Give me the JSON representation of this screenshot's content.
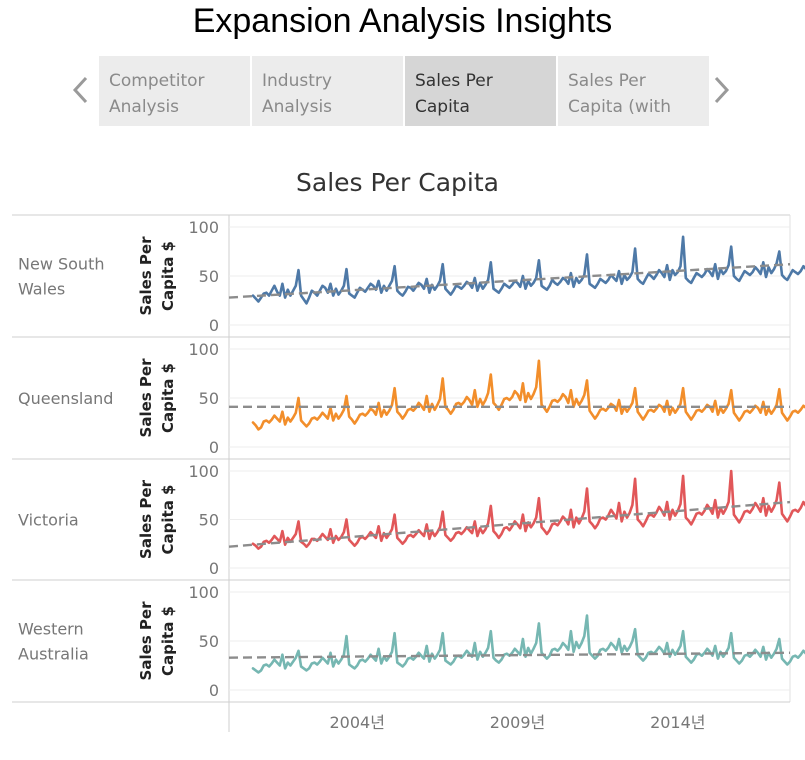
{
  "story": {
    "title": "Expansion Analysis Insights",
    "tabs": [
      {
        "label": "Competitor Analysis",
        "active": false
      },
      {
        "label": "Industry Analysis",
        "active": false
      },
      {
        "label": "Sales Per Capita",
        "active": true
      },
      {
        "label": "Sales Per Capita (with",
        "active": false
      }
    ]
  },
  "chart_data": {
    "type": "line",
    "title": "Sales Per Capita",
    "ylabel": "Sales Per Capita $",
    "ylim": [
      0,
      100
    ],
    "y_ticks": [
      0,
      50,
      100
    ],
    "xlim": [
      2000.0,
      2017.5
    ],
    "x_ticks": [
      {
        "value": 2004,
        "label": "2004년"
      },
      {
        "value": 2009,
        "label": "2009년"
      },
      {
        "value": 2014,
        "label": "2014년"
      }
    ],
    "x_start": 2000.75,
    "x_step_months": 1,
    "grid": true,
    "trend_line": "dashed gray linear trend per panel",
    "series": [
      {
        "name": "New South Wales",
        "color": "#4e79a7",
        "trend": {
          "x": [
            2000.0,
            2017.5
          ],
          "y": [
            28,
            62
          ]
        },
        "values": [
          30,
          27,
          24,
          28,
          32,
          33,
          30,
          35,
          40,
          34,
          30,
          42,
          28,
          36,
          30,
          35,
          40,
          56,
          30,
          26,
          22,
          28,
          35,
          33,
          30,
          35,
          40,
          38,
          33,
          42,
          30,
          37,
          31,
          35,
          40,
          57,
          32,
          30,
          28,
          33,
          38,
          36,
          34,
          38,
          42,
          40,
          36,
          45,
          33,
          40,
          35,
          40,
          45,
          60,
          35,
          32,
          30,
          34,
          39,
          38,
          35,
          39,
          43,
          41,
          37,
          47,
          33,
          41,
          36,
          40,
          45,
          62,
          37,
          34,
          31,
          35,
          40,
          39,
          37,
          40,
          44,
          42,
          38,
          48,
          35,
          43,
          37,
          41,
          46,
          64,
          37,
          35,
          33,
          37,
          42,
          40,
          38,
          41,
          45,
          43,
          39,
          50,
          37,
          45,
          40,
          43,
          48,
          66,
          40,
          38,
          36,
          40,
          46,
          43,
          41,
          44,
          48,
          46,
          42,
          53,
          39,
          48,
          43,
          46,
          51,
          72,
          42,
          40,
          38,
          42,
          47,
          45,
          43,
          46,
          51,
          48,
          45,
          55,
          42,
          51,
          46,
          49,
          54,
          78,
          47,
          44,
          42,
          47,
          52,
          50,
          47,
          51,
          56,
          53,
          49,
          61,
          46,
          56,
          51,
          54,
          60,
          90,
          48,
          45,
          43,
          48,
          53,
          51,
          49,
          52,
          57,
          54,
          50,
          62,
          47,
          57,
          52,
          55,
          61,
          80,
          50,
          47,
          45,
          50,
          55,
          53,
          51,
          54,
          59,
          56,
          52,
          64,
          49,
          59,
          53,
          57,
          63,
          75,
          51,
          48,
          46,
          51,
          56,
          54,
          52,
          55,
          60,
          57,
          53,
          65,
          50,
          60,
          54,
          58,
          64,
          82,
          55,
          51,
          49,
          54,
          59,
          57,
          55,
          58,
          63,
          60,
          56,
          68,
          53,
          64,
          58,
          61,
          67,
          92,
          56,
          52,
          50,
          55,
          60,
          58,
          56,
          60,
          65,
          62,
          57,
          54
        ]
      },
      {
        "name": "Queensland",
        "color": "#f28e2b",
        "trend": {
          "x": [
            2000.0,
            2017.5
          ],
          "y": [
            41,
            41
          ]
        },
        "values": [
          25,
          22,
          18,
          20,
          26,
          27,
          25,
          28,
          32,
          29,
          26,
          36,
          23,
          30,
          26,
          30,
          35,
          50,
          27,
          24,
          21,
          24,
          29,
          30,
          28,
          31,
          35,
          32,
          29,
          40,
          27,
          34,
          29,
          33,
          38,
          52,
          31,
          28,
          24,
          28,
          33,
          34,
          32,
          35,
          39,
          37,
          33,
          45,
          31,
          38,
          33,
          37,
          43,
          60,
          36,
          33,
          29,
          33,
          38,
          39,
          37,
          40,
          45,
          42,
          38,
          52,
          36,
          44,
          38,
          43,
          49,
          70,
          41,
          38,
          34,
          38,
          44,
          45,
          43,
          46,
          51,
          48,
          43,
          58,
          41,
          49,
          43,
          48,
          55,
          74,
          45,
          42,
          38,
          43,
          49,
          50,
          48,
          51,
          57,
          54,
          48,
          65,
          46,
          55,
          49,
          54,
          61,
          88,
          43,
          40,
          36,
          41,
          47,
          48,
          46,
          49,
          54,
          51,
          45,
          58,
          41,
          49,
          43,
          47,
          53,
          68,
          37,
          33,
          29,
          33,
          38,
          39,
          37,
          40,
          44,
          42,
          37,
          48,
          34,
          41,
          36,
          40,
          45,
          60,
          36,
          32,
          28,
          32,
          37,
          38,
          36,
          39,
          43,
          41,
          36,
          47,
          33,
          40,
          35,
          39,
          44,
          60,
          36,
          32,
          28,
          32,
          37,
          38,
          36,
          39,
          43,
          41,
          36,
          47,
          33,
          40,
          35,
          39,
          44,
          58,
          35,
          31,
          27,
          31,
          36,
          37,
          35,
          38,
          42,
          40,
          35,
          46,
          33,
          39,
          34,
          38,
          43,
          59,
          35,
          31,
          27,
          31,
          36,
          37,
          35,
          38,
          42,
          40,
          35,
          46,
          33,
          39,
          34,
          38,
          43,
          63,
          36,
          32,
          28,
          32,
          37,
          38,
          36,
          39,
          43,
          41,
          36,
          47,
          33,
          40,
          35,
          39,
          45,
          40
        ]
      },
      {
        "name": "Victoria",
        "color": "#e15759",
        "trend": {
          "x": [
            2000.0,
            2017.5
          ],
          "y": [
            22,
            68
          ]
        },
        "values": [
          25,
          23,
          20,
          22,
          27,
          28,
          26,
          29,
          33,
          30,
          27,
          38,
          24,
          31,
          27,
          31,
          35,
          48,
          27,
          25,
          22,
          25,
          30,
          30,
          28,
          31,
          35,
          32,
          29,
          40,
          26,
          33,
          29,
          32,
          37,
          50,
          29,
          26,
          23,
          26,
          31,
          32,
          30,
          33,
          37,
          34,
          31,
          43,
          28,
          36,
          31,
          35,
          40,
          55,
          31,
          28,
          25,
          28,
          33,
          34,
          32,
          35,
          39,
          36,
          33,
          45,
          30,
          38,
          33,
          37,
          42,
          58,
          34,
          31,
          28,
          31,
          36,
          37,
          35,
          38,
          42,
          39,
          36,
          48,
          33,
          41,
          36,
          40,
          46,
          64,
          38,
          35,
          31,
          35,
          41,
          42,
          39,
          43,
          48,
          45,
          41,
          55,
          38,
          47,
          42,
          46,
          52,
          72,
          42,
          39,
          35,
          39,
          45,
          46,
          44,
          48,
          53,
          50,
          45,
          60,
          42,
          52,
          46,
          51,
          58,
          82,
          48,
          45,
          41,
          45,
          51,
          52,
          50,
          54,
          60,
          56,
          51,
          67,
          48,
          58,
          52,
          57,
          65,
          92,
          50,
          47,
          43,
          48,
          54,
          55,
          53,
          57,
          63,
          59,
          54,
          68,
          50,
          60,
          54,
          59,
          66,
          95,
          52,
          49,
          45,
          50,
          56,
          57,
          55,
          59,
          65,
          61,
          56,
          70,
          52,
          62,
          56,
          61,
          68,
          100,
          55,
          51,
          47,
          52,
          58,
          59,
          57,
          61,
          67,
          63,
          58,
          72,
          54,
          64,
          58,
          63,
          70,
          88,
          56,
          52,
          48,
          53,
          59,
          60,
          58,
          62,
          68,
          64,
          59,
          73,
          55,
          65,
          59,
          64,
          72,
          90,
          57,
          53,
          49,
          54,
          60,
          61,
          59,
          63,
          69,
          65,
          60,
          55
        ]
      },
      {
        "name": "Western Australia",
        "color": "#76b7b2",
        "trend": {
          "x": [
            2000.0,
            2017.5
          ],
          "y": [
            33,
            38
          ]
        },
        "values": [
          22,
          20,
          18,
          20,
          25,
          26,
          24,
          27,
          31,
          28,
          25,
          36,
          22,
          28,
          25,
          29,
          33,
          40,
          24,
          22,
          20,
          22,
          27,
          28,
          26,
          29,
          33,
          30,
          27,
          38,
          24,
          31,
          27,
          31,
          36,
          55,
          26,
          24,
          22,
          25,
          30,
          31,
          29,
          32,
          36,
          33,
          30,
          42,
          27,
          34,
          30,
          34,
          39,
          58,
          28,
          26,
          24,
          27,
          32,
          33,
          31,
          34,
          38,
          35,
          32,
          45,
          29,
          37,
          32,
          36,
          41,
          58,
          30,
          28,
          26,
          29,
          34,
          35,
          33,
          36,
          40,
          37,
          34,
          48,
          31,
          39,
          34,
          38,
          43,
          60,
          33,
          30,
          28,
          31,
          36,
          37,
          35,
          38,
          42,
          39,
          36,
          52,
          34,
          43,
          37,
          42,
          48,
          68,
          38,
          35,
          32,
          35,
          41,
          42,
          40,
          43,
          48,
          45,
          41,
          60,
          39,
          49,
          43,
          48,
          55,
          76,
          38,
          35,
          32,
          35,
          41,
          42,
          40,
          43,
          48,
          45,
          41,
          52,
          38,
          45,
          40,
          44,
          50,
          62,
          36,
          33,
          30,
          33,
          38,
          39,
          37,
          40,
          44,
          41,
          37,
          48,
          34,
          41,
          36,
          40,
          45,
          60,
          34,
          31,
          28,
          31,
          36,
          37,
          35,
          38,
          42,
          39,
          35,
          45,
          32,
          39,
          34,
          38,
          43,
          58,
          33,
          30,
          27,
          30,
          35,
          36,
          34,
          37,
          41,
          38,
          34,
          44,
          31,
          38,
          33,
          37,
          42,
          52,
          32,
          29,
          26,
          29,
          34,
          35,
          33,
          36,
          40,
          37,
          33,
          43,
          30,
          37,
          32,
          36,
          41,
          58,
          32,
          29,
          26,
          29,
          34,
          35,
          33,
          36,
          40,
          37,
          33,
          43,
          30,
          37,
          32,
          36,
          41,
          35
        ]
      }
    ]
  }
}
